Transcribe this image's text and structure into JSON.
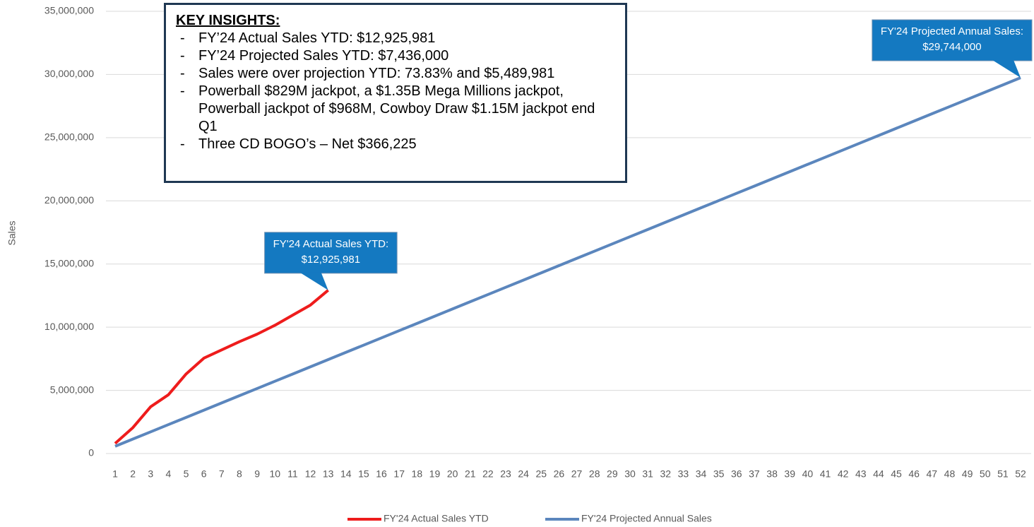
{
  "chart_data": {
    "type": "line",
    "y_label": "Sales",
    "categories": [
      1,
      2,
      3,
      4,
      5,
      6,
      7,
      8,
      9,
      10,
      11,
      12,
      13,
      14,
      15,
      16,
      17,
      18,
      19,
      20,
      21,
      22,
      23,
      24,
      25,
      26,
      27,
      28,
      29,
      30,
      31,
      32,
      33,
      34,
      35,
      36,
      37,
      38,
      39,
      40,
      41,
      42,
      43,
      44,
      45,
      46,
      47,
      48,
      49,
      50,
      51,
      52
    ],
    "series": [
      {
        "name": "FY'24 Actual Sales YTD",
        "color": "#ee1c1c",
        "values": [
          800000,
          2050000,
          3700000,
          4650000,
          6300000,
          7550000,
          8200000,
          8850000,
          9450000,
          10150000,
          10950000,
          11750000,
          12925981,
          null,
          null,
          null,
          null,
          null,
          null,
          null,
          null,
          null,
          null,
          null,
          null,
          null,
          null,
          null,
          null,
          null,
          null,
          null,
          null,
          null,
          null,
          null,
          null,
          null,
          null,
          null,
          null,
          null,
          null,
          null,
          null,
          null,
          null,
          null,
          null,
          null,
          null,
          null
        ]
      },
      {
        "name": "FY'24 Projected Annual Sales",
        "color": "#5b86bd",
        "values": [
          572000,
          1144000,
          1716000,
          2288000,
          2860000,
          3432000,
          4004000,
          4576000,
          5148000,
          5720000,
          6292000,
          6864000,
          7436000,
          8008000,
          8580000,
          9152000,
          9724000,
          10296000,
          10868000,
          11440000,
          12012000,
          12584000,
          13156000,
          13728000,
          14300000,
          14872000,
          15444000,
          16016000,
          16588000,
          17160000,
          17732000,
          18304000,
          18876000,
          19448000,
          20020000,
          20592000,
          21164000,
          21736000,
          22308000,
          22880000,
          23452000,
          24024000,
          24596000,
          25168000,
          25740000,
          26312000,
          26884000,
          27456000,
          28028000,
          28600000,
          29172000,
          29744000
        ]
      }
    ],
    "ylim": [
      0,
      35000000
    ],
    "yticks": [
      {
        "value": 0,
        "label": "0"
      },
      {
        "value": 5000000,
        "label": "5,000,000"
      },
      {
        "value": 10000000,
        "label": "10,000,000"
      },
      {
        "value": 15000000,
        "label": "15,000,000"
      },
      {
        "value": 20000000,
        "label": "20,000,000"
      },
      {
        "value": 25000000,
        "label": "25,000,000"
      },
      {
        "value": 30000000,
        "label": "30,000,000"
      },
      {
        "value": 35000000,
        "label": "35,000,000"
      }
    ],
    "grid": true,
    "legend": "bottom",
    "callouts": [
      {
        "lines": [
          "FY'24 Actual Sales YTD:",
          "$12,925,981"
        ],
        "color": "#1479c1"
      },
      {
        "lines": [
          "FY'24 Projected Annual Sales:",
          "$29,744,000"
        ],
        "color": "#1479c1"
      }
    ],
    "insights": {
      "title": "KEY INSIGHTS:",
      "items": [
        "FY’24 Actual Sales YTD: $12,925,981",
        "FY’24 Projected Sales YTD: $7,436,000",
        "Sales were over projection YTD: 73.83% and $5,489,981",
        "Powerball $829M jackpot, a $1.35B Mega Millions jackpot, Powerball jackpot of $968M, Cowboy Draw $1.15M jackpot end Q1",
        "Three CD BOGO’s – Net $366,225"
      ]
    }
  }
}
